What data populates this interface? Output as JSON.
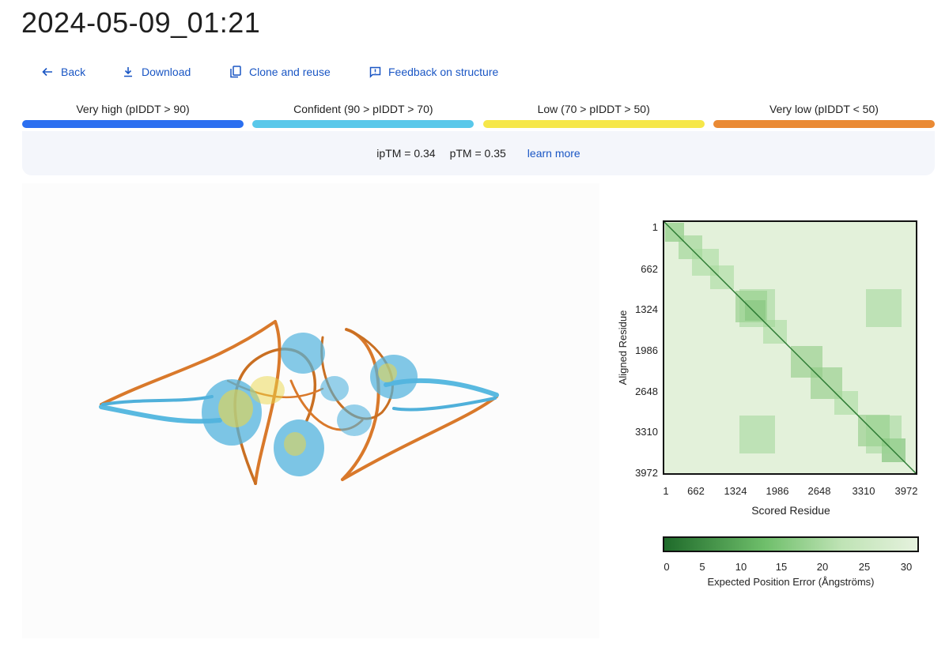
{
  "page": {
    "title": "2024-05-09_01:21"
  },
  "actions": [
    {
      "label": "Back",
      "icon": "arrow-left-icon"
    },
    {
      "label": "Download",
      "icon": "download-icon"
    },
    {
      "label": "Clone and reuse",
      "icon": "copy-icon"
    },
    {
      "label": "Feedback on structure",
      "icon": "feedback-icon"
    }
  ],
  "plddt_legend": [
    {
      "label": "Very high (pIDDT > 90)",
      "color": "#2b6ff0"
    },
    {
      "label": "Confident (90 > pIDDT > 70)",
      "color": "#59c8ea"
    },
    {
      "label": "Low (70 > pIDDT > 50)",
      "color": "#f6e749"
    },
    {
      "label": "Very low (pIDDT < 50)",
      "color": "#ea8a34"
    }
  ],
  "metrics": {
    "iptm": "ipTM = 0.34",
    "ptm": "pTM = 0.35",
    "learn_more": "learn more"
  },
  "pae": {
    "y_label": "Aligned Residue",
    "x_label": "Scored Residue",
    "ticks": [
      "1",
      "662",
      "1324",
      "1986",
      "2648",
      "3310",
      "3972"
    ],
    "colorbar_ticks": [
      "0",
      "5",
      "10",
      "15",
      "20",
      "25",
      "30"
    ],
    "colorbar_label": "Expected Position Error (Ångströms)",
    "low_color": "#1e6a2a",
    "high_color": "#e6f2de"
  }
}
